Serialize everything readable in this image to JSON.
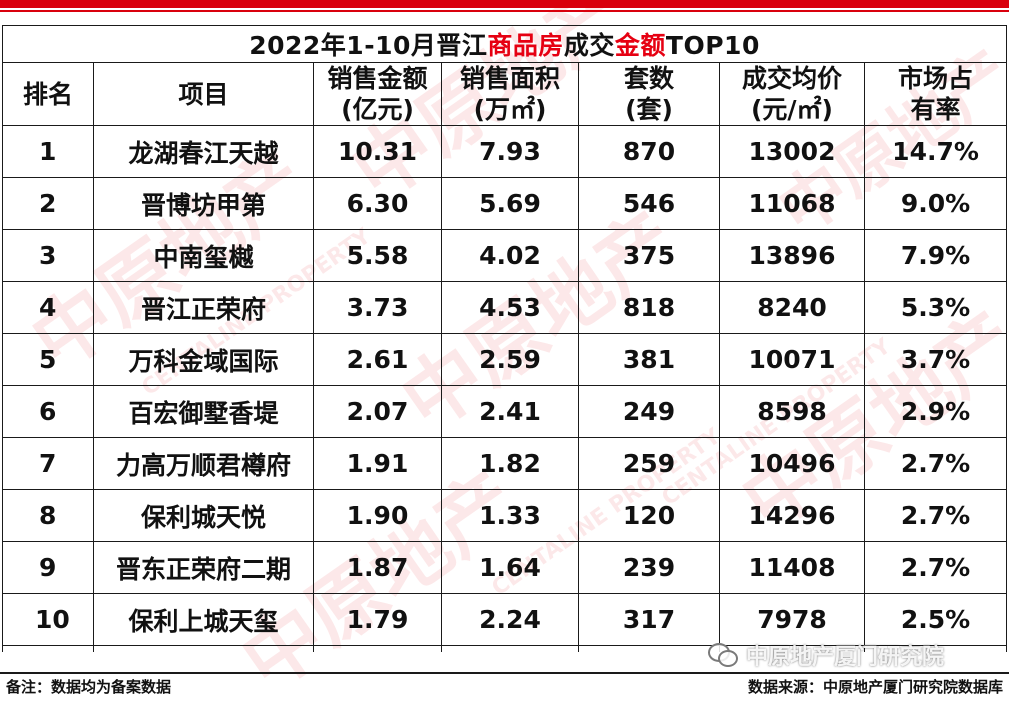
{
  "title": {
    "part1": "2022年1-10月晋江",
    "part2": "商品房",
    "part3": "成交",
    "part4": "金额",
    "part5": "TOP10"
  },
  "headers": [
    {
      "line1": "排名",
      "line2": ""
    },
    {
      "line1": "项目",
      "line2": ""
    },
    {
      "line1": "销售金额",
      "line2": "(亿元)"
    },
    {
      "line1": "销售面积",
      "line2": "(万㎡)"
    },
    {
      "line1": "套数",
      "line2": "(套)"
    },
    {
      "line1": "成交均价",
      "line2": "(元/㎡)"
    },
    {
      "line1": "市场占",
      "line2": "有率"
    }
  ],
  "rows": [
    {
      "rank": "1",
      "project": "龙湖春江天越",
      "amount": "10.31",
      "area": "7.93",
      "units": "870",
      "price": "13002",
      "share": "14.7%"
    },
    {
      "rank": "2",
      "project": "晋博坊甲第",
      "amount": "6.30",
      "area": "5.69",
      "units": "546",
      "price": "11068",
      "share": "9.0%"
    },
    {
      "rank": "3",
      "project": "中南玺樾",
      "amount": "5.58",
      "area": "4.02",
      "units": "375",
      "price": "13896",
      "share": "7.9%"
    },
    {
      "rank": "4",
      "project": "晋江正荣府",
      "amount": "3.73",
      "area": "4.53",
      "units": "818",
      "price": "8240",
      "share": "5.3%"
    },
    {
      "rank": "5",
      "project": "万科金域国际",
      "amount": "2.61",
      "area": "2.59",
      "units": "381",
      "price": "10071",
      "share": "3.7%"
    },
    {
      "rank": "6",
      "project": "百宏御墅香堤",
      "amount": "2.07",
      "area": "2.41",
      "units": "249",
      "price": "8598",
      "share": "2.9%"
    },
    {
      "rank": "7",
      "project": "力高万顺君樽府",
      "amount": "1.91",
      "area": "1.82",
      "units": "259",
      "price": "10496",
      "share": "2.7%"
    },
    {
      "rank": "8",
      "project": "保利城天悦",
      "amount": "1.90",
      "area": "1.33",
      "units": "120",
      "price": "14296",
      "share": "2.7%"
    },
    {
      "rank": "9",
      "project": "晋东正荣府二期",
      "amount": "1.87",
      "area": "1.64",
      "units": "239",
      "price": "11408",
      "share": "2.7%"
    },
    {
      "rank": "10",
      "project": "保利上城天玺",
      "amount": "1.79",
      "area": "2.24",
      "units": "317",
      "price": "7978",
      "share": "2.5%"
    }
  ],
  "footer": {
    "note": "备注：数据均为备案数据",
    "source": "数据来源：中原地产厦门研究院数据库"
  },
  "wechat": {
    "label": "中原地产厦门研究院",
    "icon": "wechat-icon"
  },
  "watermark": {
    "cn": "中原地产",
    "en": "CENTALINE PROPERTY"
  },
  "colors": {
    "accent": "#e60012",
    "bar": "#d9000d"
  }
}
